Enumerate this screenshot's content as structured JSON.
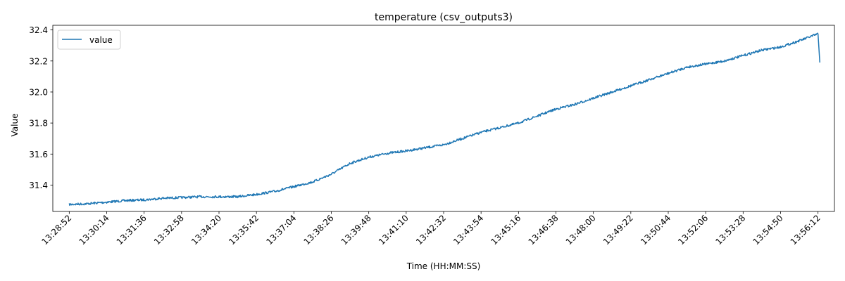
{
  "chart_data": {
    "type": "line",
    "title": "temperature (csv_outputs3)",
    "xlabel": "Time (HH:MM:SS)",
    "ylabel": "Value",
    "x_tick_labels": [
      "13:28:52",
      "13:30:14",
      "13:31:36",
      "13:32:58",
      "13:34:20",
      "13:35:42",
      "13:37:04",
      "13:38:26",
      "13:39:48",
      "13:41:10",
      "13:42:32",
      "13:43:54",
      "13:45:16",
      "13:46:38",
      "13:48:00",
      "13:49:22",
      "13:50:44",
      "13:52:06",
      "13:53:28",
      "13:54:50",
      "13:56:12"
    ],
    "y_ticks": [
      31.4,
      31.6,
      31.8,
      32.0,
      32.2,
      32.4
    ],
    "y_tick_labels": [
      "31.4",
      "31.6",
      "31.8",
      "32.0",
      "32.2",
      "32.4"
    ],
    "ylim": [
      31.23,
      32.43
    ],
    "xlim": [
      "13:28:16",
      "13:56:48"
    ],
    "grid": false,
    "legend_position": "top-left",
    "series": [
      {
        "name": "value",
        "color": "#1f77b4",
        "x": [
          "13:28:52",
          "13:29:33",
          "13:30:14",
          "13:30:55",
          "13:31:36",
          "13:32:17",
          "13:32:58",
          "13:33:39",
          "13:34:20",
          "13:35:01",
          "13:35:42",
          "13:36:23",
          "13:37:04",
          "13:37:45",
          "13:38:26",
          "13:39:07",
          "13:39:48",
          "13:40:29",
          "13:41:10",
          "13:41:51",
          "13:42:32",
          "13:43:13",
          "13:43:54",
          "13:44:35",
          "13:45:16",
          "13:45:57",
          "13:46:38",
          "13:47:19",
          "13:48:00",
          "13:48:41",
          "13:49:22",
          "13:50:03",
          "13:50:44",
          "13:51:25",
          "13:52:06",
          "13:52:47",
          "13:53:28",
          "13:54:09",
          "13:54:50",
          "13:55:31",
          "13:56:12",
          "13:56:16"
        ],
        "y": [
          31.275,
          31.28,
          31.29,
          31.3,
          31.305,
          31.315,
          31.32,
          31.325,
          31.325,
          31.325,
          31.34,
          31.36,
          31.39,
          31.42,
          31.47,
          31.54,
          31.58,
          31.605,
          31.62,
          31.64,
          31.66,
          31.7,
          31.74,
          31.77,
          31.8,
          31.845,
          31.89,
          31.92,
          31.96,
          32.0,
          32.04,
          32.08,
          32.12,
          32.16,
          32.18,
          32.2,
          32.235,
          32.27,
          32.29,
          32.33,
          32.375,
          32.19
        ]
      }
    ]
  }
}
